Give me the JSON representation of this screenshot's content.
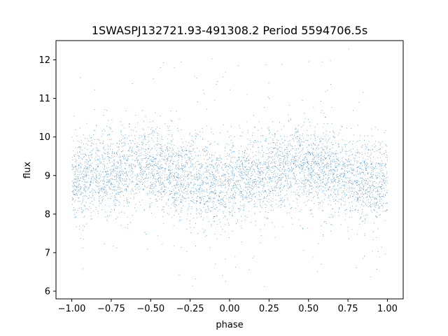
{
  "chart_data": {
    "type": "scatter",
    "title": "1SWASPJ132721.93-491308.2 Period 5594706.5s",
    "xlabel": "phase",
    "ylabel": "flux",
    "xlim": [
      -1.1,
      1.1
    ],
    "ylim": [
      5.8,
      12.5
    ],
    "x_ticks": [
      -1.0,
      -0.75,
      -0.5,
      -0.25,
      0.0,
      0.25,
      0.5,
      0.75,
      1.0
    ],
    "x_tick_labels": [
      "−1.00",
      "−0.75",
      "−0.50",
      "−0.25",
      "0.00",
      "0.25",
      "0.50",
      "0.75",
      "1.00"
    ],
    "y_ticks": [
      6,
      7,
      8,
      9,
      10,
      11,
      12
    ],
    "y_tick_labels": [
      "6",
      "7",
      "8",
      "9",
      "10",
      "11",
      "12"
    ],
    "grid": false,
    "legend": "none",
    "point_color": "#1f77b4",
    "phase_range": [
      -1.0,
      1.0
    ],
    "mean_flux_profile": {
      "phase": [
        -1.0,
        -0.75,
        -0.5,
        -0.3,
        -0.1,
        0.0,
        0.25,
        0.45,
        0.6,
        0.8,
        1.0
      ],
      "flux": [
        8.9,
        9.1,
        9.2,
        9.0,
        8.7,
        8.85,
        9.1,
        9.3,
        9.2,
        8.85,
        8.9
      ]
    },
    "scatter_sigma": 0.55,
    "outlier_flux_range": [
      6.0,
      12.3
    ]
  }
}
